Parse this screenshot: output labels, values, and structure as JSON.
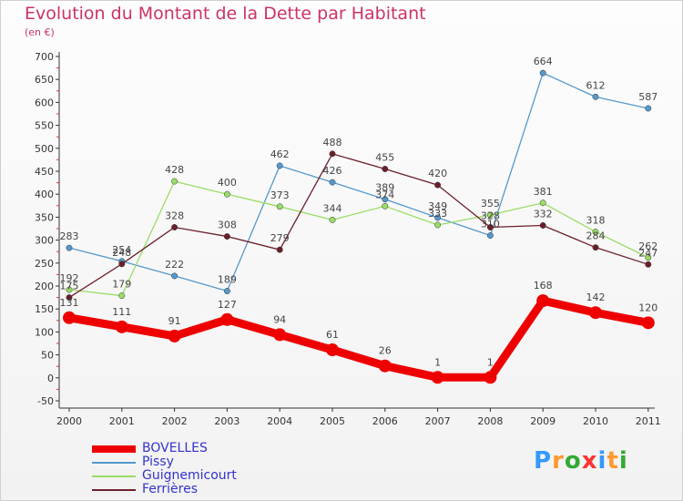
{
  "title": "Evolution du Montant de la Dette par Habitant",
  "subtitle": "(en €)",
  "logo": "Proxiti",
  "chart_data": {
    "type": "line",
    "x": [
      2000,
      2001,
      2002,
      2003,
      2004,
      2005,
      2006,
      2007,
      2008,
      2009,
      2010,
      2011
    ],
    "ylim": [
      -50,
      700
    ],
    "yticks": [
      -50,
      0,
      50,
      100,
      150,
      200,
      250,
      300,
      350,
      400,
      450,
      500,
      550,
      600,
      650,
      700
    ],
    "grid": false,
    "legend_position": "bottom-left",
    "series": [
      {
        "name": "Pissy",
        "color": "#5599cc",
        "values": [
          283,
          254,
          222,
          189,
          462,
          426,
          389,
          349,
          310,
          664,
          612,
          587
        ]
      },
      {
        "name": "Guignemicourt",
        "color": "#99dd66",
        "values": [
          192,
          179,
          428,
          400,
          373,
          344,
          374,
          333,
          355,
          381,
          318,
          262
        ]
      },
      {
        "name": "Ferrières",
        "color": "#6b1f2a",
        "values": [
          175,
          248,
          328,
          308,
          279,
          488,
          455,
          420,
          328,
          332,
          284,
          247
        ]
      },
      {
        "name": "BOVELLES",
        "color": "#ee0000",
        "values": [
          131,
          111,
          91,
          127,
          94,
          61,
          26,
          1,
          1,
          168,
          142,
          120
        ]
      }
    ]
  }
}
